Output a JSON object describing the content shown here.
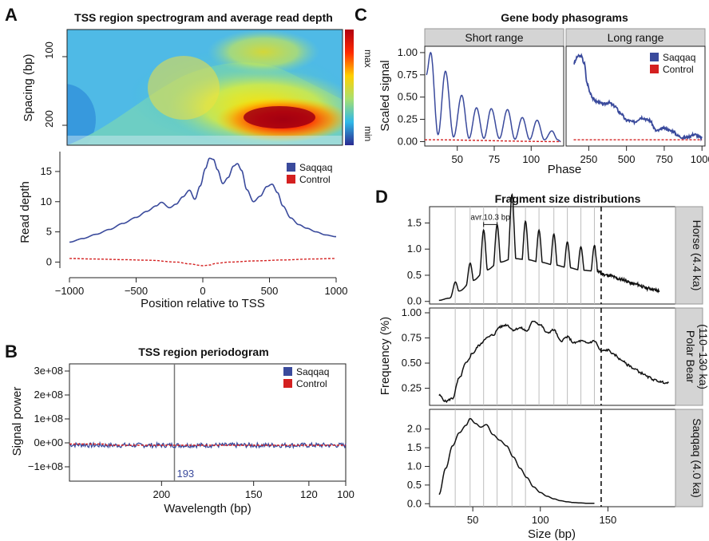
{
  "panel_letters": [
    "A",
    "B",
    "C",
    "D"
  ],
  "legend": {
    "saqqaq": "Saqqaq",
    "control": "Control"
  },
  "colors": {
    "saqqaq": "#3a4a9c",
    "control": "#d42020",
    "fragment": "#111111",
    "strip": "#d4d4d4",
    "tss_line": "#777777"
  },
  "chart_data": [
    {
      "id": "A_spectrogram",
      "type": "heatmap",
      "title": "TSS region spectrogram and average read depth",
      "ylabel": "Spacing (bp)",
      "yticks": [
        "100",
        "200"
      ],
      "colorbar_labels": [
        "max",
        "min"
      ],
      "description_values": {
        "x_range": [
          -1000,
          1000
        ],
        "y_range": [
          40,
          235
        ],
        "hotspot": {
          "x": 500,
          "y": 190
        }
      }
    },
    {
      "id": "A_readdepth",
      "type": "line",
      "xlabel": "Position relative to TSS",
      "ylabel": "Read depth",
      "xlim": [
        -1000,
        1000
      ],
      "ylim": [
        -1,
        17.5
      ],
      "xticks": [
        "−1000",
        "−500",
        "0",
        "500",
        "1000"
      ],
      "yticks": [
        "0",
        "5",
        "10",
        "15"
      ],
      "series": [
        {
          "name": "Saqqaq",
          "x": [
            -1000,
            -900,
            -800,
            -700,
            -600,
            -500,
            -420,
            -350,
            -310,
            -250,
            -200,
            -150,
            -100,
            -60,
            -20,
            20,
            50,
            80,
            110,
            150,
            190,
            230,
            260,
            290,
            330,
            380,
            430,
            480,
            520,
            560,
            600,
            660,
            720,
            780,
            850,
            920,
            1000
          ],
          "y": [
            3.3,
            3.9,
            4.6,
            5.4,
            6.4,
            7.4,
            8.4,
            9.3,
            9.9,
            9.0,
            9.6,
            10.8,
            11.9,
            10.4,
            12.6,
            15.5,
            17.2,
            17.0,
            15.3,
            13.0,
            14.0,
            15.9,
            16.3,
            15.2,
            12.0,
            10.0,
            10.9,
            12.5,
            12.9,
            11.5,
            9.3,
            7.3,
            6.2,
            5.6,
            5.0,
            4.5,
            4.2
          ]
        },
        {
          "name": "Control",
          "x": [
            -1000,
            -800,
            -600,
            -400,
            -200,
            -100,
            0,
            50,
            100,
            200,
            400,
            600,
            800,
            1000
          ],
          "y": [
            0.6,
            0.5,
            0.4,
            0.3,
            0.0,
            -0.3,
            -0.6,
            -0.5,
            -0.2,
            0.0,
            0.2,
            0.35,
            0.5,
            0.6
          ]
        }
      ]
    },
    {
      "id": "B_periodogram",
      "type": "line",
      "title": "TSS region periodogram",
      "xlabel": "Wavelength (bp)",
      "ylabel": "Signal power",
      "xlim": [
        250,
        100
      ],
      "ylim": [
        -160000000.0,
        330000000.0
      ],
      "xticks": [
        "200",
        "150",
        "120",
        "100"
      ],
      "yticks": [
        "−1e+08",
        "0e+00",
        "1e+08",
        "2e+08",
        "3e+08"
      ],
      "annotation": "193",
      "series": [
        {
          "name": "Saqqaq",
          "x": [
            250,
            240,
            230,
            220,
            215,
            210,
            205,
            200,
            197,
            193,
            190,
            186,
            182,
            178,
            174,
            170,
            165,
            160,
            150,
            140,
            130,
            120,
            110,
            100
          ],
          "y": [
            -20000000.0,
            -10000000.0,
            0.0,
            20000000.0,
            80000000.0,
            110000000.0,
            220000000.0,
            280000000.0,
            260000000.0,
            310000000.0,
            290000000.0,
            220000000.0,
            160000000.0,
            110000000.0,
            70000000.0,
            40000000.0,
            20000000.0,
            10000000.0,
            5000000.0,
            0.0,
            -5000000.0,
            -5000000.0,
            -8000000.0,
            -10000000.0
          ]
        },
        {
          "name": "Control",
          "x": [
            250,
            230,
            210,
            190,
            170,
            150,
            130,
            110,
            100
          ],
          "y": [
            -40000000.0,
            -10000000.0,
            5000000.0,
            10000000.0,
            8000000.0,
            5000000.0,
            0.0,
            -5000000.0,
            -8000000.0
          ]
        }
      ]
    },
    {
      "id": "C_short",
      "type": "line",
      "title": "Gene body phasograms",
      "strip": "Short range",
      "xlabel": "Phase",
      "ylabel": "Scaled signal",
      "xlim": [
        28,
        122
      ],
      "ylim": [
        -0.05,
        1.08
      ],
      "xticks": [
        "50",
        "75",
        "100"
      ],
      "yticks": [
        "0.00",
        "0.25",
        "0.50",
        "0.75",
        "1.00"
      ],
      "series": [
        {
          "name": "Saqqaq",
          "peaks_x": [
            32,
            42,
            53,
            63,
            73,
            84,
            94,
            104,
            114
          ],
          "peaks_y": [
            1.0,
            0.79,
            0.52,
            0.38,
            0.37,
            0.36,
            0.27,
            0.24,
            0.12
          ],
          "end": 120
        },
        {
          "name": "Control",
          "x": [
            28,
            120
          ],
          "y": [
            0.02,
            0.0
          ]
        }
      ]
    },
    {
      "id": "C_long",
      "type": "line",
      "strip": "Long range",
      "xlim": [
        100,
        1020
      ],
      "ylim": [
        -0.05,
        1.08
      ],
      "xticks": [
        "250",
        "500",
        "750",
        "1000"
      ],
      "series": [
        {
          "name": "Saqqaq",
          "x": [
            150,
            180,
            200,
            220,
            240,
            260,
            280,
            300,
            350,
            380,
            420,
            460,
            500,
            550,
            600,
            650,
            700,
            750,
            800,
            850,
            880,
            900,
            950,
            1000
          ],
          "y": [
            0.88,
            0.96,
            0.96,
            0.88,
            0.65,
            0.55,
            0.48,
            0.45,
            0.42,
            0.44,
            0.4,
            0.32,
            0.24,
            0.22,
            0.27,
            0.24,
            0.12,
            0.15,
            0.12,
            0.06,
            0.04,
            0.05,
            0.08,
            0.04
          ]
        },
        {
          "name": "Control",
          "x": [
            150,
            1000
          ],
          "y": [
            0.02,
            0.02
          ]
        }
      ]
    },
    {
      "id": "D_horse",
      "type": "line",
      "title": "Fragment size distributions",
      "strip": "Horse (4.4 ka)",
      "ylabel": "Frequency (%)",
      "annotation": "avr.10.3 bp",
      "xlim": [
        18,
        200
      ],
      "ylim": [
        -0.05,
        1.72
      ],
      "yticks": [
        "0.0",
        "0.5",
        "1.0",
        "1.5"
      ],
      "dashed_x": 145,
      "peaks_x": [
        37,
        48,
        58,
        68,
        79,
        89,
        99,
        110,
        120,
        130,
        140
      ],
      "peaks_y": [
        0.3,
        0.55,
        1.1,
        1.12,
        1.68,
        1.15,
        1.0,
        0.95,
        0.82,
        0.75,
        0.78
      ],
      "baseline_x": [
        25,
        32,
        40,
        50,
        60,
        70,
        80,
        90,
        100,
        110,
        120,
        130,
        140,
        150,
        160,
        170,
        180,
        188
      ],
      "baseline_y": [
        0.02,
        0.06,
        0.2,
        0.4,
        0.6,
        0.75,
        0.82,
        0.8,
        0.75,
        0.7,
        0.65,
        0.6,
        0.58,
        0.5,
        0.42,
        0.33,
        0.25,
        0.2
      ]
    },
    {
      "id": "D_polarbear",
      "type": "line",
      "strip": "Polar Bear (110−130 ka)",
      "xlim": [
        18,
        200
      ],
      "ylim": [
        0.08,
        1.0
      ],
      "yticks": [
        "0.25",
        "0.50",
        "0.75",
        "1.00"
      ],
      "dashed_x": 145,
      "x": [
        25,
        30,
        35,
        40,
        45,
        50,
        55,
        60,
        65,
        70,
        75,
        80,
        85,
        90,
        95,
        100,
        105,
        110,
        115,
        120,
        125,
        130,
        135,
        140,
        145,
        150,
        155,
        160,
        165,
        170,
        175,
        180,
        185,
        190,
        195
      ],
      "y": [
        0.18,
        0.12,
        0.15,
        0.35,
        0.5,
        0.6,
        0.68,
        0.75,
        0.78,
        0.86,
        0.88,
        0.83,
        0.85,
        0.82,
        0.92,
        0.88,
        0.8,
        0.83,
        0.72,
        0.76,
        0.7,
        0.72,
        0.7,
        0.72,
        0.62,
        0.63,
        0.58,
        0.53,
        0.48,
        0.44,
        0.4,
        0.36,
        0.33,
        0.31,
        0.3
      ]
    },
    {
      "id": "D_saqqaq",
      "type": "line",
      "strip": "Saqqaq (4.0 ka)",
      "xlabel": "Size (bp)",
      "xlim": [
        18,
        200
      ],
      "ylim": [
        -0.08,
        2.4
      ],
      "xticks": [
        "50",
        "100",
        "150"
      ],
      "yticks": [
        "0.0",
        "0.5",
        "1.0",
        "1.5",
        "2.0"
      ],
      "dashed_x": 145,
      "x": [
        25,
        30,
        35,
        40,
        45,
        48,
        52,
        56,
        60,
        65,
        70,
        75,
        80,
        85,
        90,
        95,
        100,
        105,
        110,
        115,
        120,
        125,
        130,
        135,
        140
      ],
      "y": [
        0.25,
        0.95,
        1.55,
        1.9,
        2.1,
        2.28,
        2.15,
        2.05,
        2.12,
        1.85,
        1.7,
        1.55,
        1.25,
        0.95,
        0.7,
        0.45,
        0.3,
        0.2,
        0.13,
        0.08,
        0.05,
        0.03,
        0.02,
        0.01,
        0.01
      ]
    }
  ]
}
